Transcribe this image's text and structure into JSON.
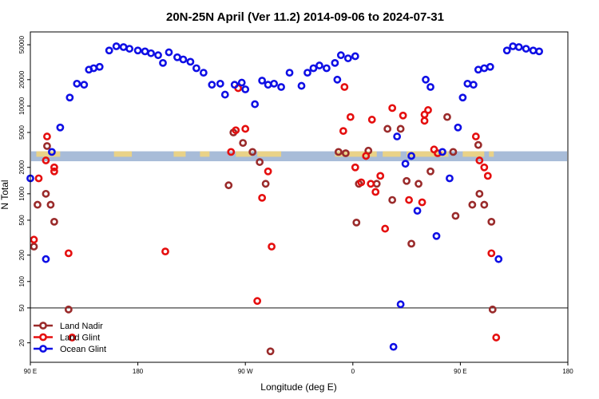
{
  "chart_data": {
    "type": "scatter",
    "title": "20N-25N April (Ver 11.2)   2014-09-06 to 2024-07-31",
    "xlabel": "Longitude (deg E)",
    "ylabel": "N Total",
    "x_ticks": [
      {
        "value": 90,
        "label": "90 E"
      },
      {
        "value": 180,
        "label": "180"
      },
      {
        "value": 270,
        "label": "90 W"
      },
      {
        "value": 360,
        "label": "0"
      },
      {
        "value": 450,
        "label": "90 E"
      },
      {
        "value": 540,
        "label": "180"
      }
    ],
    "xlim": [
      90,
      540
    ],
    "y_scale": "log",
    "ylim": [
      12,
      70000
    ],
    "y_ticks": [
      20,
      50,
      100,
      200,
      500,
      1000,
      2000,
      5000,
      10000,
      20000,
      50000
    ],
    "y_tick_labels": [
      "20",
      "50",
      "100",
      "200",
      "500",
      "1000",
      "2000",
      "5000",
      "10000",
      "20000",
      "50000"
    ],
    "reference_line": 50,
    "band": {
      "color": "#a8bcd8",
      "accent": "#f5d67a",
      "y_low": 2350,
      "y_high": 3050
    },
    "legend": {
      "position": "bottom-left"
    },
    "series": [
      {
        "name": "Land Nadir",
        "color": "#9a2b2b",
        "points": [
          [
            93,
            250
          ],
          [
            96,
            750
          ],
          [
            103,
            1000
          ],
          [
            107,
            750
          ],
          [
            104,
            3500
          ],
          [
            110,
            480
          ],
          [
            122,
            48
          ],
          [
            256,
            1250
          ],
          [
            260,
            5000
          ],
          [
            268,
            3800
          ],
          [
            276,
            3000
          ],
          [
            282,
            2300
          ],
          [
            287,
            1300
          ],
          [
            291,
            16
          ],
          [
            348,
            3000
          ],
          [
            354,
            2900
          ],
          [
            363,
            470
          ],
          [
            365,
            1300
          ],
          [
            373,
            3100
          ],
          [
            380,
            1300
          ],
          [
            389,
            5500
          ],
          [
            393,
            850
          ],
          [
            400,
            5500
          ],
          [
            405,
            1400
          ],
          [
            409,
            270
          ],
          [
            415,
            1300
          ],
          [
            425,
            1800
          ],
          [
            439,
            7500
          ],
          [
            444,
            3000
          ],
          [
            446,
            560
          ],
          [
            460,
            750
          ],
          [
            466,
            1000
          ],
          [
            465,
            3600
          ],
          [
            470,
            750
          ],
          [
            476,
            480
          ],
          [
            477,
            48
          ]
        ]
      },
      {
        "name": "Land Glint",
        "color": "#e50f0f",
        "points": [
          [
            93,
            300
          ],
          [
            97,
            1500
          ],
          [
            103,
            2400
          ],
          [
            104,
            4500
          ],
          [
            110,
            2000
          ],
          [
            110,
            1800
          ],
          [
            122,
            210
          ],
          [
            125,
            23
          ],
          [
            203,
            220
          ],
          [
            258,
            3000
          ],
          [
            262,
            5300
          ],
          [
            264,
            16000
          ],
          [
            270,
            5500
          ],
          [
            280,
            60
          ],
          [
            289,
            1800
          ],
          [
            284,
            900
          ],
          [
            292,
            250
          ],
          [
            352,
            5200
          ],
          [
            353,
            16500
          ],
          [
            358,
            7500
          ],
          [
            362,
            2000
          ],
          [
            367,
            1350
          ],
          [
            371,
            2700
          ],
          [
            375,
            1300
          ],
          [
            376,
            7000
          ],
          [
            379,
            1050
          ],
          [
            383,
            1600
          ],
          [
            387,
            400
          ],
          [
            393,
            9500
          ],
          [
            402,
            7800
          ],
          [
            407,
            850
          ],
          [
            418,
            800
          ],
          [
            420,
            8000
          ],
          [
            420,
            6800
          ],
          [
            423,
            9000
          ],
          [
            428,
            3200
          ],
          [
            431,
            2900
          ],
          [
            463,
            4500
          ],
          [
            466,
            2400
          ],
          [
            470,
            2000
          ],
          [
            473,
            1600
          ],
          [
            476,
            210
          ],
          [
            480,
            23
          ]
        ]
      },
      {
        "name": "Ocean Glint",
        "color": "#0f0fe5",
        "points": [
          [
            90,
            1500
          ],
          [
            103,
            180
          ],
          [
            108,
            3000
          ],
          [
            115,
            5700
          ],
          [
            123,
            12500
          ],
          [
            129,
            18000
          ],
          [
            135,
            17500
          ],
          [
            139,
            26000
          ],
          [
            143,
            27000
          ],
          [
            148,
            28000
          ],
          [
            156,
            43000
          ],
          [
            162,
            48000
          ],
          [
            168,
            47000
          ],
          [
            173,
            45000
          ],
          [
            180,
            43000
          ],
          [
            186,
            42000
          ],
          [
            191,
            40000
          ],
          [
            197,
            38000
          ],
          [
            201,
            31000
          ],
          [
            206,
            41000
          ],
          [
            213,
            36000
          ],
          [
            218,
            34000
          ],
          [
            224,
            32000
          ],
          [
            229,
            27000
          ],
          [
            235,
            24000
          ],
          [
            242,
            17500
          ],
          [
            249,
            18000
          ],
          [
            253,
            13500
          ],
          [
            261,
            17500
          ],
          [
            267,
            18500
          ],
          [
            270,
            15500
          ],
          [
            278,
            10500
          ],
          [
            284,
            19500
          ],
          [
            289,
            17500
          ],
          [
            294,
            18000
          ],
          [
            300,
            16500
          ],
          [
            307,
            24000
          ],
          [
            317,
            17000
          ],
          [
            322,
            24000
          ],
          [
            327,
            27000
          ],
          [
            332,
            29000
          ],
          [
            338,
            27000
          ],
          [
            345,
            31000
          ],
          [
            350,
            38000
          ],
          [
            356,
            35000
          ],
          [
            362,
            37000
          ],
          [
            347,
            20000
          ],
          [
            394,
            18
          ],
          [
            397,
            4500
          ],
          [
            400,
            55
          ],
          [
            404,
            2200
          ],
          [
            409,
            2700
          ],
          [
            414,
            640
          ],
          [
            421,
            20000
          ],
          [
            425,
            16500
          ],
          [
            430,
            330
          ],
          [
            435,
            3000
          ],
          [
            441,
            1500
          ],
          [
            448,
            5700
          ],
          [
            452,
            12500
          ],
          [
            456,
            18000
          ],
          [
            461,
            17500
          ],
          [
            465,
            26000
          ],
          [
            470,
            27000
          ],
          [
            475,
            28000
          ],
          [
            482,
            180
          ],
          [
            489,
            43000
          ],
          [
            494,
            48000
          ],
          [
            499,
            47000
          ],
          [
            505,
            45000
          ],
          [
            511,
            43000
          ],
          [
            516,
            42000
          ]
        ]
      }
    ]
  }
}
